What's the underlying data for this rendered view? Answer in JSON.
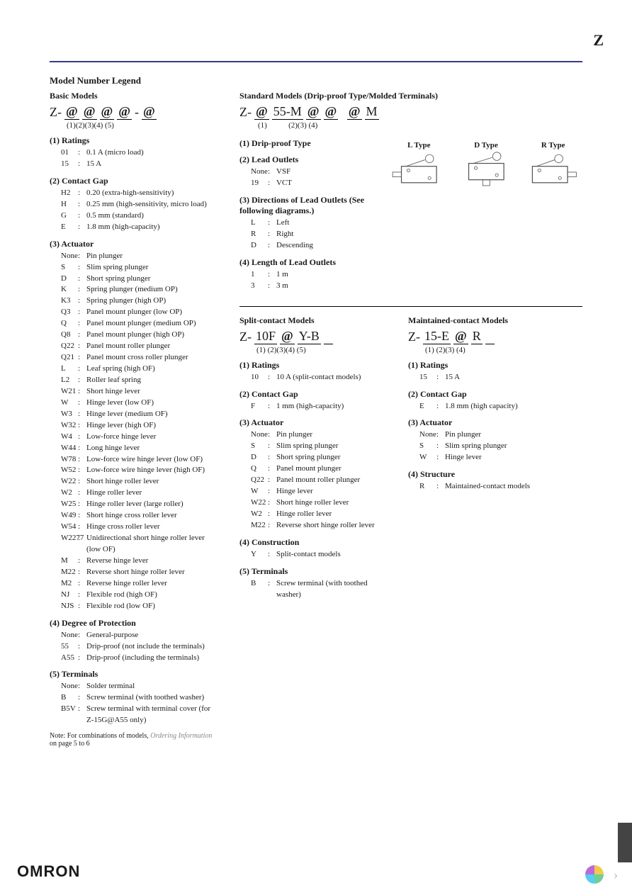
{
  "page": {
    "header_letter": "Z",
    "main_title": "Model Number Legend",
    "note_prefix": "Note: For combinations of models, ",
    "note_italic": "Ordering Information",
    "note_suffix": " on page 5 to 6",
    "footer_brand": "OMRON",
    "colors": {
      "rule": "#3a3a8a",
      "text": "#1a1a1a",
      "muted": "#888888",
      "tab": "#444444"
    }
  },
  "basic": {
    "title": "Basic Models",
    "prefix": "Z-",
    "idx": "(1)(2)(3)(4) (5)",
    "sections": [
      {
        "title": "(1) Ratings",
        "items": [
          {
            "k": "01",
            "v": "0.1 A (micro load)"
          },
          {
            "k": "15",
            "v": "15 A"
          }
        ]
      },
      {
        "title": "(2) Contact Gap",
        "items": [
          {
            "k": "H2",
            "v": "0.20 (extra-high-sensitivity)"
          },
          {
            "k": "H",
            "v": "0.25 mm (high-sensitivity, micro load)"
          },
          {
            "k": "G",
            "v": "0.5 mm (standard)"
          },
          {
            "k": "E",
            "v": "1.8 mm (high-capacity)"
          }
        ]
      },
      {
        "title": "(3) Actuator",
        "items": [
          {
            "k": "None",
            "v": "Pin plunger"
          },
          {
            "k": "S",
            "v": "Slim spring plunger"
          },
          {
            "k": "D",
            "v": "Short spring plunger"
          },
          {
            "k": "K",
            "v": "Spring plunger (medium OP)"
          },
          {
            "k": "K3",
            "v": "Spring plunger (high OP)"
          },
          {
            "k": "Q3",
            "v": "Panel mount plunger (low OP)"
          },
          {
            "k": "Q",
            "v": "Panel mount plunger (medium OP)"
          },
          {
            "k": "Q8",
            "v": "Panel mount plunger (high OP)"
          },
          {
            "k": "Q22",
            "v": "Panel mount roller plunger"
          },
          {
            "k": "Q21",
            "v": "Panel mount cross roller plunger"
          },
          {
            "k": "L",
            "v": "Leaf spring (high OF)"
          },
          {
            "k": "L2",
            "v": "Roller leaf spring"
          },
          {
            "k": "W21",
            "v": "Short hinge lever"
          },
          {
            "k": "W",
            "v": "Hinge lever (low OF)"
          },
          {
            "k": "W3",
            "v": "Hinge lever (medium OF)"
          },
          {
            "k": "W32",
            "v": "Hinge lever (high OF)"
          },
          {
            "k": "W4",
            "v": "Low-force hinge lever"
          },
          {
            "k": "W44",
            "v": "Long hinge lever"
          },
          {
            "k": "W78",
            "v": "Low-force wire hinge lever (low OF)"
          },
          {
            "k": "W52",
            "v": "Low-force wire hinge lever (high OF)"
          },
          {
            "k": "W22",
            "v": "Short hinge roller lever"
          },
          {
            "k": "W2",
            "v": "Hinge roller lever"
          },
          {
            "k": "W25",
            "v": "Hinge roller lever (large roller)"
          },
          {
            "k": "W49",
            "v": "Short hinge cross roller lever"
          },
          {
            "k": "W54",
            "v": "Hinge cross roller lever"
          },
          {
            "k": "W2277",
            "v": "Unidirectional short hinge roller lever (low OF)"
          },
          {
            "k": "M",
            "v": "Reverse hinge lever"
          },
          {
            "k": "M22",
            "v": "Reverse short hinge roller lever"
          },
          {
            "k": "M2",
            "v": "Reverse hinge roller lever"
          },
          {
            "k": "NJ",
            "v": "Flexible rod (high OF)"
          },
          {
            "k": "NJS",
            "v": "Flexible rod (low OF)"
          }
        ]
      },
      {
        "title": "(4) Degree of Protection",
        "items": [
          {
            "k": "None",
            "v": "General-purpose"
          },
          {
            "k": "55",
            "v": "Drip-proof (not include the terminals)"
          },
          {
            "k": "A55",
            "v": "Drip-proof (including the terminals)"
          }
        ]
      },
      {
        "title": "(5) Terminals",
        "items": [
          {
            "k": "None",
            "v": "Solder terminal"
          },
          {
            "k": "B",
            "v": "Screw terminal (with toothed washer)"
          },
          {
            "k": "B5V",
            "v": "Screw terminal with terminal cover (for Z-15G@A55 only)"
          }
        ]
      }
    ]
  },
  "standard": {
    "title": "Standard Models (Drip-proof Type/Molded Terminals)",
    "prefix": "Z-",
    "pattern_parts": [
      "@",
      "55-M",
      "@",
      "@",
      " ",
      "@",
      "M"
    ],
    "idx": "(1)           (2)(3) (4)",
    "sections_a": [
      {
        "title": "(1) Drip-proof Type",
        "items": []
      },
      {
        "title": "(2) Lead Outlets",
        "items": [
          {
            "k": "None",
            "v": "VSF"
          },
          {
            "k": "19",
            "v": "VCT"
          }
        ]
      },
      {
        "title": "(3) Directions of Lead Outlets (See following diagrams.)",
        "items": [
          {
            "k": "L",
            "v": "Left"
          },
          {
            "k": "R",
            "v": "Right"
          },
          {
            "k": "D",
            "v": "Descending"
          }
        ]
      },
      {
        "title": "(4) Length of Lead Outlets",
        "items": [
          {
            "k": "1",
            "v": "1 m"
          },
          {
            "k": "3",
            "v": "3 m"
          }
        ]
      }
    ],
    "diagrams": {
      "l": "L Type",
      "d": "D Type",
      "r": "R Type"
    }
  },
  "split": {
    "title": "Split-contact Models",
    "prefix": "Z-",
    "idx": "(1) (2)(3)(4) (5)",
    "sections": [
      {
        "title": "(1) Ratings",
        "items": [
          {
            "k": "10",
            "v": "10 A (split-contact models)"
          }
        ]
      },
      {
        "title": "(2) Contact Gap",
        "items": [
          {
            "k": "F",
            "v": "1 mm (high-capacity)"
          }
        ]
      },
      {
        "title": "(3) Actuator",
        "items": [
          {
            "k": "None",
            "v": "Pin plunger"
          },
          {
            "k": "S",
            "v": "Slim spring plunger"
          },
          {
            "k": "D",
            "v": "Short spring plunger"
          },
          {
            "k": "Q",
            "v": "Panel mount plunger"
          },
          {
            "k": "Q22",
            "v": "Panel mount roller plunger"
          },
          {
            "k": "W",
            "v": "Hinge lever"
          },
          {
            "k": "W22",
            "v": "Short hinge roller lever"
          },
          {
            "k": "W2",
            "v": "Hinge roller lever"
          },
          {
            "k": "M22",
            "v": "Reverse short hinge roller lever"
          }
        ]
      },
      {
        "title": "(4) Construction",
        "items": [
          {
            "k": "Y",
            "v": "Split-contact models"
          }
        ]
      },
      {
        "title": "(5) Terminals",
        "items": [
          {
            "k": "B",
            "v": "Screw terminal (with toothed washer)"
          }
        ]
      }
    ]
  },
  "maintained": {
    "title": "Maintained-contact Models",
    "prefix": "Z-",
    "idx": "(1) (2)(3) (4)",
    "sections": [
      {
        "title": "(1) Ratings",
        "items": [
          {
            "k": "15",
            "v": "15 A"
          }
        ]
      },
      {
        "title": "(2) Contact Gap",
        "items": [
          {
            "k": "E",
            "v": "1.8 mm (high capacity)"
          }
        ]
      },
      {
        "title": "(3) Actuator",
        "items": [
          {
            "k": "None",
            "v": "Pin plunger"
          },
          {
            "k": "S",
            "v": "Slim spring plunger"
          },
          {
            "k": "W",
            "v": "Hinge lever"
          }
        ]
      },
      {
        "title": "(4) Structure",
        "items": [
          {
            "k": "R",
            "v": "Maintained-contact models"
          }
        ]
      }
    ]
  }
}
